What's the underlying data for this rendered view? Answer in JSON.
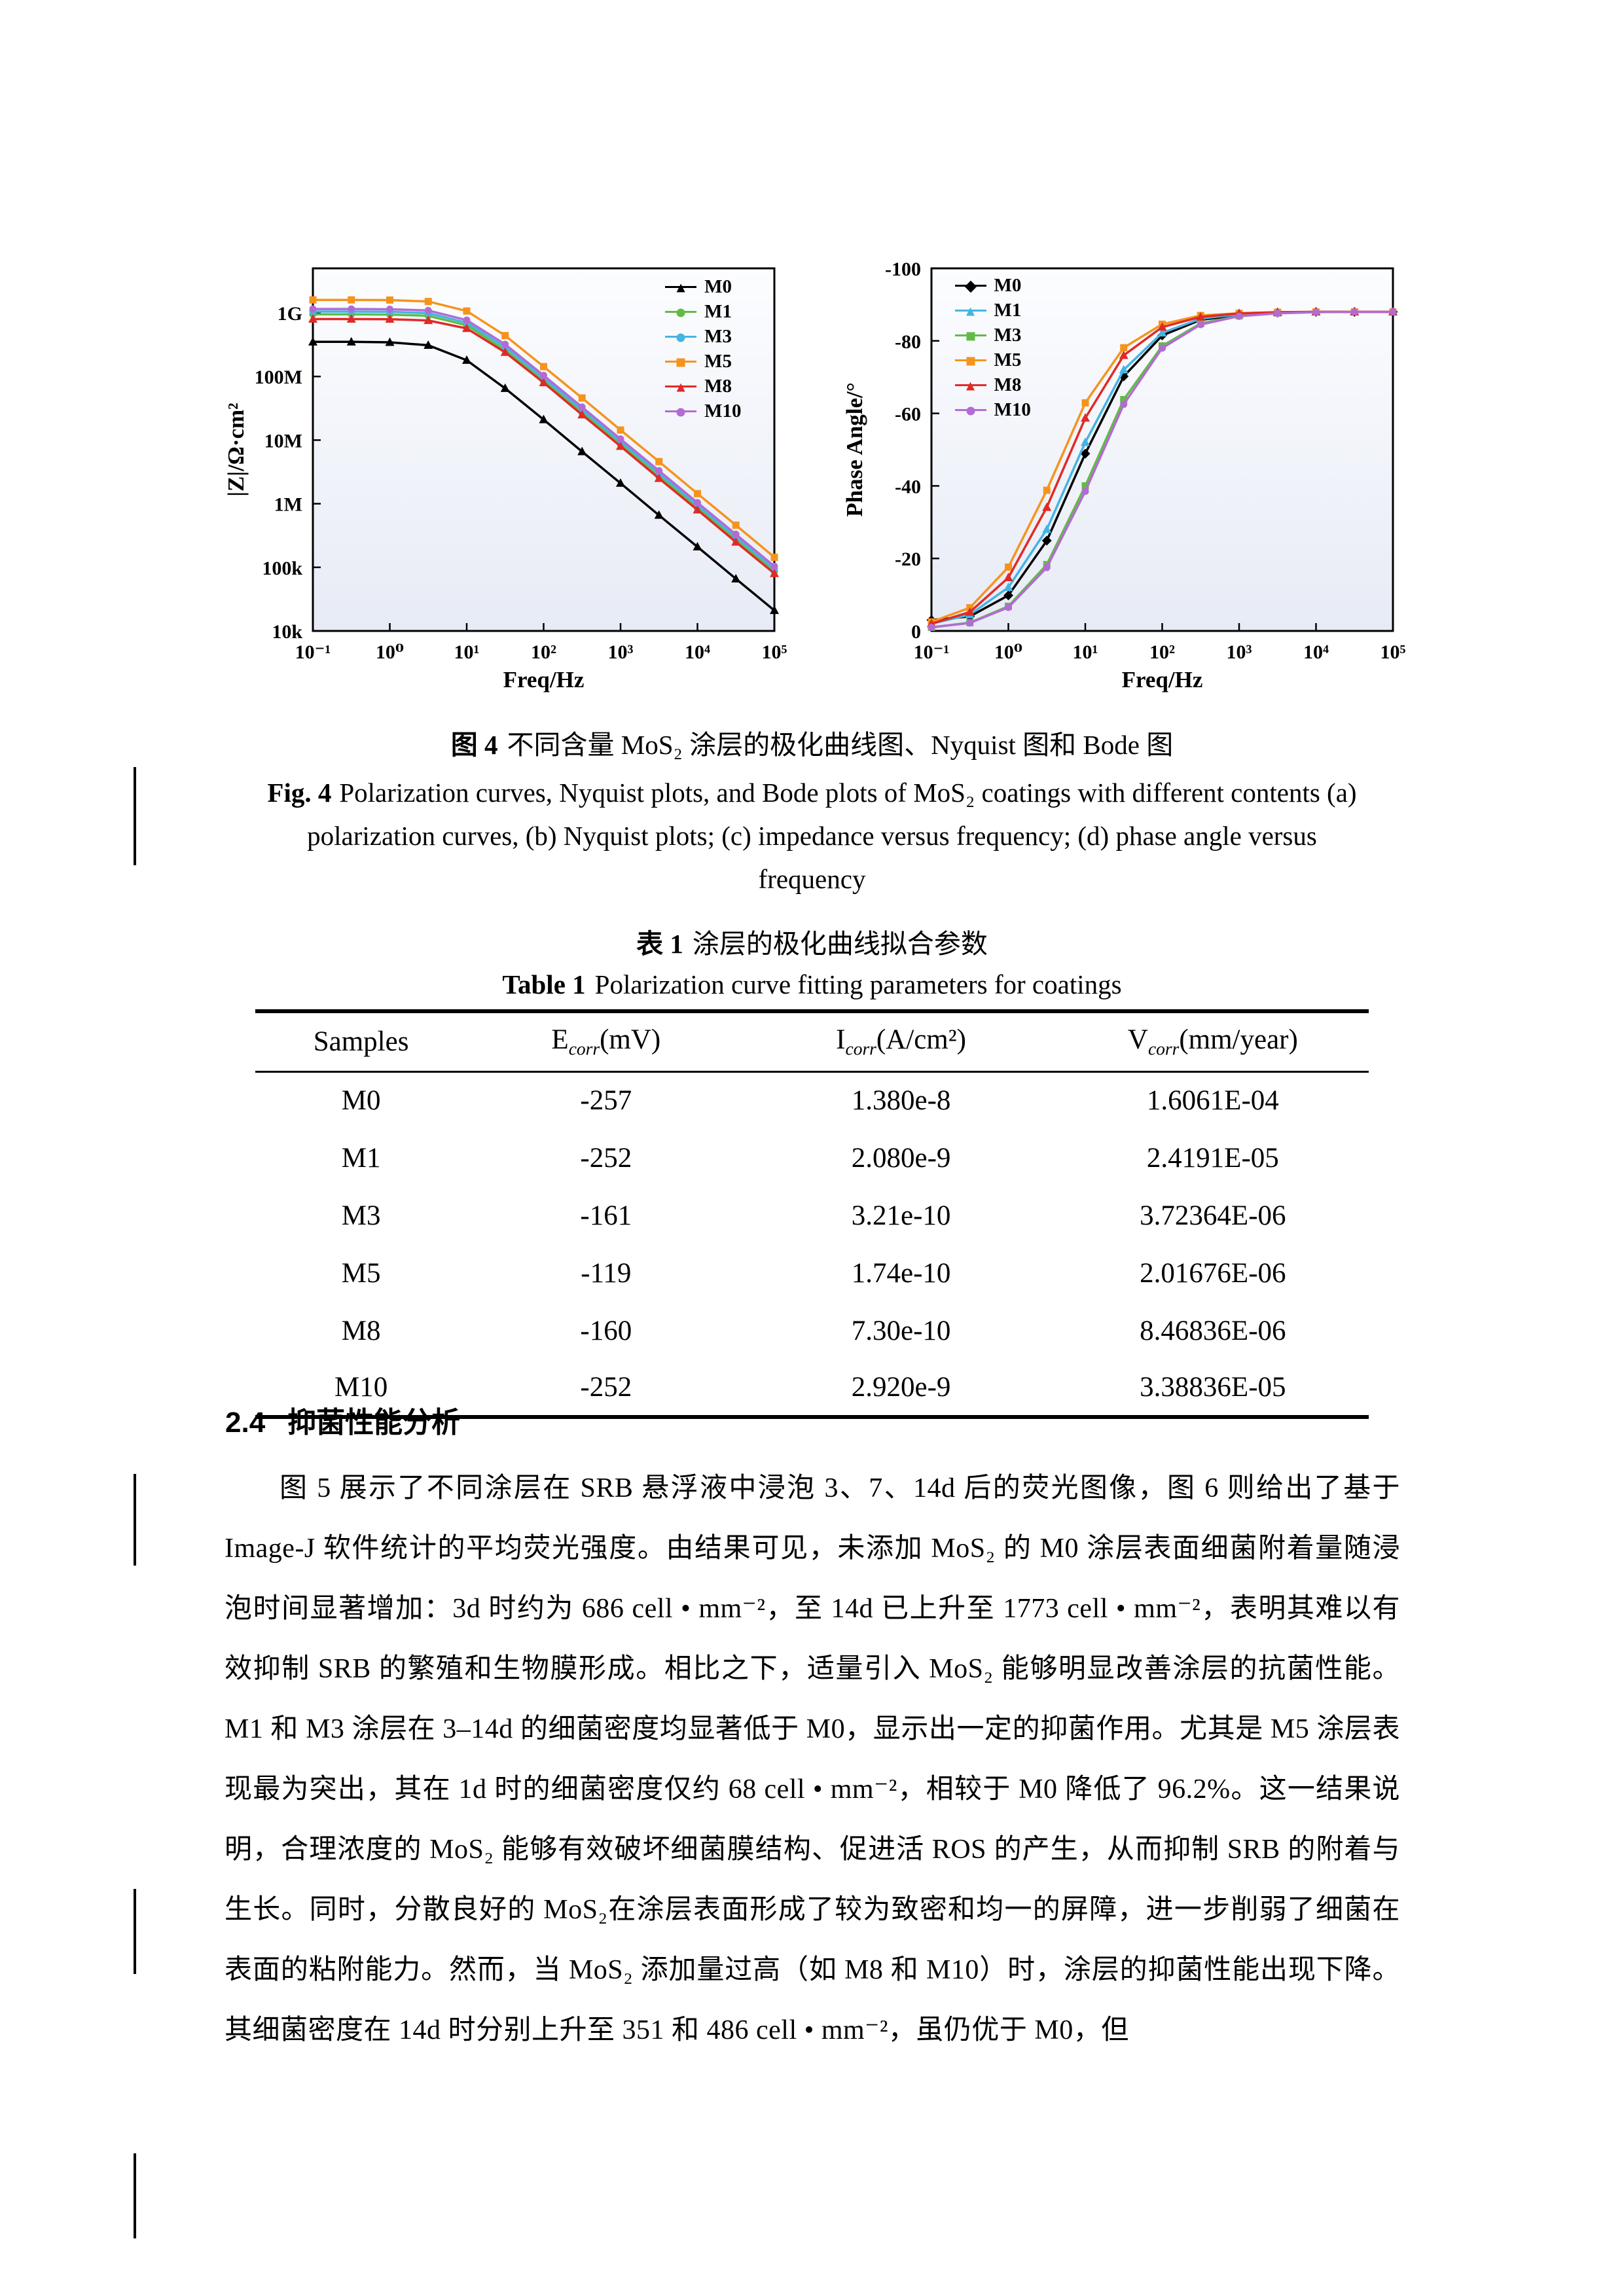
{
  "figure": {
    "caption_zh": {
      "label": "图 4",
      "text": "不同含量 MoS₂ 涂层的极化曲线图、Nyquist 图和 Bode 图"
    },
    "caption_en": {
      "label": "Fig. 4",
      "text": "Polarization curves, Nyquist plots, and Bode plots of MoS₂ coatings with different contents (a) polarization curves, (b) Nyquist plots; (c) impedance versus frequency; (d) phase angle versus frequency"
    }
  },
  "table": {
    "caption_zh": {
      "label": "表 1",
      "text": "涂层的极化曲线拟合参数"
    },
    "caption_en": {
      "label": "Table 1",
      "text": "Polarization curve fitting parameters for coatings"
    },
    "headers": [
      {
        "pre": "Samples",
        "sub": "",
        "post": ""
      },
      {
        "pre": "E",
        "sub": "corr",
        "post": "(mV)"
      },
      {
        "pre": "I",
        "sub": "corr",
        "post": "(A/cm²)"
      },
      {
        "pre": "V",
        "sub": "corr",
        "post": "(mm/year)"
      }
    ],
    "rows": [
      {
        "sample": "M0",
        "ecorr": "-257",
        "icorr": "1.380e-8",
        "vcorr": "1.6061E-04"
      },
      {
        "sample": "M1",
        "ecorr": "-252",
        "icorr": "2.080e-9",
        "vcorr": "2.4191E-05"
      },
      {
        "sample": "M3",
        "ecorr": "-161",
        "icorr": "3.21e-10",
        "vcorr": "3.72364E-06"
      },
      {
        "sample": "M5",
        "ecorr": "-119",
        "icorr": "1.74e-10",
        "vcorr": "2.01676E-06"
      },
      {
        "sample": "M8",
        "ecorr": "-160",
        "icorr": "7.30e-10",
        "vcorr": "8.46836E-06"
      },
      {
        "sample": "M10",
        "ecorr": "-252",
        "icorr": "2.920e-9",
        "vcorr": "3.38836E-05"
      }
    ]
  },
  "section": {
    "number": "2.4",
    "title": "抑菌性能分析"
  },
  "paragraph": "图 5 展示了不同涂层在 SRB 悬浮液中浸泡 3、7、14d 后的荧光图像，图 6 则给出了基于 Image-J 软件统计的平均荧光强度。由结果可见，未添加 MoS₂ 的 M0 涂层表面细菌附着量随浸泡时间显著增加：3d 时约为 686 cell • mm⁻²，至 14d 已上升至 1773 cell • mm⁻²，表明其难以有效抑制 SRB 的繁殖和生物膜形成。相比之下，适量引入 MoS₂ 能够明显改善涂层的抗菌性能。M1 和 M3 涂层在 3–14d 的细菌密度均显著低于 M0，显示出一定的抑菌作用。尤其是 M5 涂层表现最为突出，其在 1d 时的细菌密度仅约 68 cell • mm⁻²，相较于 M0 降低了 96.2%。这一结果说明，合理浓度的 MoS₂ 能够有效破坏细菌膜结构、促进活 ROS 的产生，从而抑制 SRB 的附着与生长。同时，分散良好的 MoS₂在涂层表面形成了较为致密和均一的屏障，进一步削弱了细菌在表面的粘附能力。然而，当 MoS₂ 添加量过高（如 M8 和 M10）时，涂层的抑菌性能出现下降。其细菌密度在 14d 时分别上升至 351 和 486 cell • mm⁻²，虽仍优于 M0，但",
  "chart_data": [
    {
      "id": "impedance",
      "type": "line",
      "title": "",
      "xlabel": "Freq/Hz",
      "ylabel": "|Z|/Ω·cm²",
      "xscale": "log",
      "yscale": "log",
      "xlim": [
        -1,
        5
      ],
      "ylim": [
        4,
        9.7
      ],
      "x_tick_values": [
        -1,
        0,
        1,
        2,
        3,
        4,
        5
      ],
      "x_tick_labels": [
        "10⁻¹",
        "10⁰",
        "10¹",
        "10²",
        "10³",
        "10⁴",
        "10⁵"
      ],
      "y_tick_values": [
        4,
        5,
        6,
        7,
        8,
        9
      ],
      "y_tick_labels": [
        "10k",
        "100k",
        "1M",
        "10M",
        "100M",
        "1G"
      ],
      "grid": false,
      "legend_position": "top-right",
      "x": [
        0.1,
        0.316,
        1,
        3.16,
        10,
        31.6,
        100,
        316,
        1000,
        3160,
        10000,
        31600,
        100000
      ],
      "series": [
        {
          "name": "M0",
          "color": "#000000",
          "marker": "triangle",
          "values": [
            350000000.0,
            350000000.0,
            345000000.0,
            310000000.0,
            180000000.0,
            65000000.0,
            21000000.0,
            6600000.0,
            2100000.0,
            660000.0,
            210000.0,
            66000.0,
            21000.0
          ]
        },
        {
          "name": "M1",
          "color": "#62bb46",
          "marker": "circle",
          "values": [
            950000000.0,
            950000000.0,
            940000000.0,
            900000000.0,
            640000000.0,
            260000000.0,
            85000000.0,
            27000000.0,
            8600000.0,
            2700000.0,
            860000.0,
            270000.0,
            86000.0
          ]
        },
        {
          "name": "M3",
          "color": "#45b4e3",
          "marker": "circle",
          "values": [
            1050000000.0,
            1050000000.0,
            1040000000.0,
            990000000.0,
            700000000.0,
            290000000.0,
            94000000.0,
            30000000.0,
            9500000.0,
            3000000.0,
            950000.0,
            300000.0,
            95000.0
          ]
        },
        {
          "name": "M5",
          "color": "#f5941d",
          "marker": "square",
          "values": [
            1600000000.0,
            1600000000.0,
            1590000000.0,
            1510000000.0,
            1070000000.0,
            440000000.0,
            143000000.0,
            46000000.0,
            14400000.0,
            4600000.0,
            1440000.0,
            460000.0,
            144000.0
          ]
        },
        {
          "name": "M8",
          "color": "#e02a27",
          "marker": "triangle",
          "values": [
            800000000.0,
            800000000.0,
            796000000.0,
            760000000.0,
            570000000.0,
            240000000.0,
            80000000.0,
            25000000.0,
            8000000.0,
            2500000.0,
            800000.0,
            250000.0,
            80000.0
          ]
        },
        {
          "name": "M10",
          "color": "#b36bd4",
          "marker": "circle",
          "values": [
            1150000000.0,
            1150000000.0,
            1140000000.0,
            1090000000.0,
            770000000.0,
            320000000.0,
            104000000.0,
            33000000.0,
            10400000.0,
            3300000.0,
            1040000.0,
            330000.0,
            104000.0
          ]
        }
      ]
    },
    {
      "id": "phase",
      "type": "line",
      "title": "",
      "xlabel": "Freq/Hz",
      "ylabel": "Phase Angle/°",
      "xscale": "log",
      "yscale": "linear",
      "xlim": [
        -1,
        5
      ],
      "ylim": [
        0,
        -100
      ],
      "x_tick_values": [
        -1,
        0,
        1,
        2,
        3,
        4,
        5
      ],
      "x_tick_labels": [
        "10⁻¹",
        "10⁰",
        "10¹",
        "10²",
        "10³",
        "10⁴",
        "10⁵"
      ],
      "y_tick_values": [
        0,
        -20,
        -40,
        -60,
        -80,
        -100
      ],
      "y_tick_labels": [
        "0",
        "-20",
        "-40",
        "-60",
        "-80",
        "-100"
      ],
      "grid": false,
      "legend_position": "top-left",
      "x": [
        0.1,
        0.316,
        1,
        3.16,
        10,
        31.6,
        100,
        316,
        1000,
        3160,
        10000,
        31600,
        100000
      ],
      "series": [
        {
          "name": "M0",
          "color": "#000000",
          "marker": "diamond",
          "values": [
            -3,
            -4,
            -9.8,
            -24.9,
            -48.9,
            -70.2,
            -81.5,
            -85.8,
            -87.1,
            -87.8,
            -88,
            -88,
            -88
          ]
        },
        {
          "name": "M1",
          "color": "#45b4e3",
          "marker": "triangle",
          "values": [
            -2,
            -4.5,
            -12,
            -28,
            -52,
            -72,
            -82.2,
            -86.1,
            -87.4,
            -87.8,
            -88,
            -88,
            -88
          ]
        },
        {
          "name": "M3",
          "color": "#62bb46",
          "marker": "square",
          "values": [
            -1,
            -2.3,
            -6.8,
            -18.3,
            -40,
            -63.8,
            -78.6,
            -84.8,
            -86.9,
            -87.7,
            -88,
            -88,
            -88
          ]
        },
        {
          "name": "M5",
          "color": "#f5941d",
          "marker": "square",
          "values": [
            -2.5,
            -6.4,
            -17.6,
            -38.8,
            -62.9,
            -78.1,
            -84.6,
            -87,
            -87.6,
            -87.9,
            -88,
            -88,
            -88
          ]
        },
        {
          "name": "M8",
          "color": "#e02a27",
          "marker": "triangle",
          "values": [
            -2,
            -5.2,
            -14.7,
            -34.1,
            -58.7,
            -76,
            -83.8,
            -86.6,
            -87.6,
            -87.9,
            -88,
            -88,
            -88
          ]
        },
        {
          "name": "M10",
          "color": "#b36bd4",
          "marker": "circle",
          "values": [
            -1,
            -2.2,
            -6.5,
            -17.5,
            -38.5,
            -62.5,
            -78,
            -84.5,
            -86.8,
            -87.6,
            -87.9,
            -88,
            -88
          ]
        }
      ]
    }
  ]
}
